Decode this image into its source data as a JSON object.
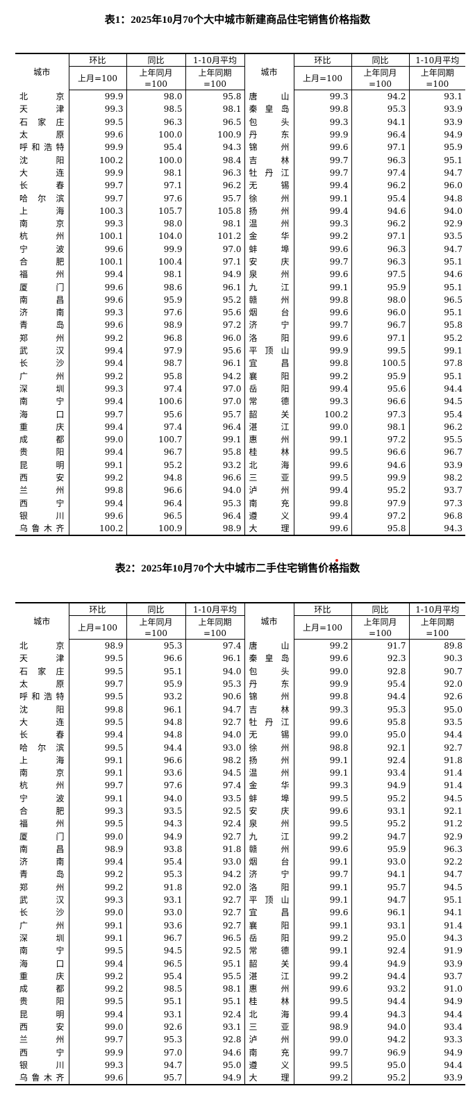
{
  "tables": [
    {
      "title": "表1：2025年10月70个大中城市新建商品住宅销售价格指数",
      "header": {
        "city": "城市",
        "mom": "环比",
        "mom_base": "上月=100",
        "yoy": "同比",
        "yoy_base_1": "上年同月",
        "yoy_base_2": "=100",
        "avg": "1-10月平均",
        "avg_base_1": "上年同期",
        "avg_base_2": "=100"
      },
      "rows": [
        [
          "北京",
          "99.9",
          "98.0",
          "95.8",
          "唐山",
          "99.3",
          "94.2",
          "93.1"
        ],
        [
          "天津",
          "99.3",
          "98.5",
          "98.1",
          "秦皇岛",
          "99.8",
          "95.3",
          "93.9"
        ],
        [
          "石家庄",
          "99.5",
          "96.3",
          "96.5",
          "包头",
          "99.3",
          "94.1",
          "93.9"
        ],
        [
          "太原",
          "99.6",
          "100.0",
          "100.9",
          "丹东",
          "99.9",
          "96.4",
          "94.9"
        ],
        [
          "呼和浩特",
          "99.9",
          "95.4",
          "94.3",
          "锦州",
          "99.6",
          "97.1",
          "95.9"
        ],
        [
          "沈阳",
          "100.2",
          "100.0",
          "98.4",
          "吉林",
          "99.7",
          "96.3",
          "95.1"
        ],
        [
          "大连",
          "99.9",
          "98.1",
          "96.3",
          "牡丹江",
          "99.7",
          "97.4",
          "94.7"
        ],
        [
          "长春",
          "99.7",
          "97.1",
          "96.2",
          "无锡",
          "99.4",
          "96.2",
          "96.0"
        ],
        [
          "哈尔滨",
          "99.7",
          "97.6",
          "95.7",
          "徐州",
          "99.1",
          "95.4",
          "94.8"
        ],
        [
          "上海",
          "100.3",
          "105.7",
          "105.8",
          "扬州",
          "99.4",
          "94.6",
          "94.0"
        ],
        [
          "南京",
          "99.3",
          "98.0",
          "98.1",
          "温州",
          "99.3",
          "96.2",
          "92.9"
        ],
        [
          "杭州",
          "100.1",
          "104.0",
          "101.2",
          "金华",
          "99.2",
          "97.1",
          "93.5"
        ],
        [
          "宁波",
          "99.6",
          "99.9",
          "97.0",
          "蚌埠",
          "99.6",
          "96.3",
          "94.7"
        ],
        [
          "合肥",
          "100.1",
          "100.4",
          "97.1",
          "安庆",
          "99.7",
          "96.3",
          "95.1"
        ],
        [
          "福州",
          "99.4",
          "98.1",
          "94.9",
          "泉州",
          "99.6",
          "97.5",
          "94.6"
        ],
        [
          "厦门",
          "99.6",
          "98.6",
          "96.1",
          "九江",
          "99.1",
          "95.9",
          "95.1"
        ],
        [
          "南昌",
          "99.6",
          "95.9",
          "95.2",
          "赣州",
          "99.8",
          "98.0",
          "96.5"
        ],
        [
          "济南",
          "99.3",
          "97.6",
          "95.6",
          "烟台",
          "99.6",
          "96.0",
          "95.1"
        ],
        [
          "青岛",
          "99.6",
          "98.9",
          "97.2",
          "济宁",
          "99.7",
          "96.7",
          "95.8"
        ],
        [
          "郑州",
          "99.2",
          "96.8",
          "96.0",
          "洛阳",
          "99.6",
          "97.1",
          "95.2"
        ],
        [
          "武汉",
          "99.4",
          "97.9",
          "95.6",
          "平顶山",
          "99.9",
          "99.5",
          "99.1"
        ],
        [
          "长沙",
          "99.4",
          "98.7",
          "96.1",
          "宜昌",
          "99.8",
          "100.5",
          "97.8"
        ],
        [
          "广州",
          "99.2",
          "95.8",
          "94.2",
          "襄阳",
          "99.2",
          "95.9",
          "95.1"
        ],
        [
          "深圳",
          "99.3",
          "97.4",
          "97.0",
          "岳阳",
          "99.4",
          "95.6",
          "94.4"
        ],
        [
          "南宁",
          "99.4",
          "100.6",
          "97.0",
          "常德",
          "99.3",
          "96.6",
          "94.5"
        ],
        [
          "海口",
          "99.7",
          "95.6",
          "95.7",
          "韶关",
          "100.2",
          "97.3",
          "95.4"
        ],
        [
          "重庆",
          "99.4",
          "97.4",
          "96.4",
          "湛江",
          "99.0",
          "98.1",
          "96.2"
        ],
        [
          "成都",
          "99.0",
          "100.7",
          "99.1",
          "惠州",
          "99.1",
          "97.2",
          "95.5"
        ],
        [
          "贵阳",
          "99.4",
          "96.7",
          "95.8",
          "桂林",
          "99.5",
          "96.6",
          "96.7"
        ],
        [
          "昆明",
          "99.1",
          "95.2",
          "93.2",
          "北海",
          "99.6",
          "94.6",
          "93.9"
        ],
        [
          "西安",
          "99.2",
          "94.8",
          "96.6",
          "三亚",
          "99.5",
          "99.9",
          "98.2"
        ],
        [
          "兰州",
          "99.8",
          "96.6",
          "94.0",
          "泸州",
          "99.4",
          "95.2",
          "93.7"
        ],
        [
          "西宁",
          "99.4",
          "96.4",
          "95.3",
          "南充",
          "99.8",
          "97.9",
          "97.3"
        ],
        [
          "银川",
          "99.6",
          "96.5",
          "96.4",
          "遵义",
          "99.4",
          "97.2",
          "96.8"
        ],
        [
          "乌鲁木齐",
          "100.2",
          "100.9",
          "98.9",
          "大理",
          "99.6",
          "95.8",
          "94.3"
        ]
      ]
    },
    {
      "title": "表2：2025年10月70个大中城市二手住宅销售价格指数",
      "header": {
        "city": "城市",
        "mom": "环比",
        "mom_base": "上月=100",
        "yoy": "同比",
        "yoy_base_1": "上年同月",
        "yoy_base_2": "=100",
        "avg": "1-10月平均",
        "avg_base_1": "上年同期",
        "avg_base_2": "=100"
      },
      "rows": [
        [
          "北京",
          "98.9",
          "95.3",
          "97.4",
          "唐山",
          "99.2",
          "91.7",
          "89.8"
        ],
        [
          "天津",
          "99.5",
          "96.6",
          "96.1",
          "秦皇岛",
          "99.6",
          "92.3",
          "90.3"
        ],
        [
          "石家庄",
          "99.5",
          "95.1",
          "94.0",
          "包头",
          "99.0",
          "92.8",
          "90.7"
        ],
        [
          "太原",
          "99.7",
          "95.9",
          "95.3",
          "丹东",
          "99.9",
          "95.4",
          "92.0"
        ],
        [
          "呼和浩特",
          "99.5",
          "93.2",
          "90.6",
          "锦州",
          "99.8",
          "94.4",
          "92.6"
        ],
        [
          "沈阳",
          "99.8",
          "96.1",
          "94.7",
          "吉林",
          "99.3",
          "95.3",
          "95.0"
        ],
        [
          "大连",
          "99.5",
          "94.8",
          "92.7",
          "牡丹江",
          "99.6",
          "95.8",
          "93.5"
        ],
        [
          "长春",
          "99.4",
          "94.8",
          "94.0",
          "无锡",
          "99.0",
          "95.0",
          "94.4"
        ],
        [
          "哈尔滨",
          "99.5",
          "94.4",
          "93.0",
          "徐州",
          "98.8",
          "92.1",
          "92.7"
        ],
        [
          "上海",
          "99.1",
          "96.6",
          "98.2",
          "扬州",
          "99.1",
          "92.4",
          "91.8"
        ],
        [
          "南京",
          "99.1",
          "93.6",
          "94.5",
          "温州",
          "99.1",
          "93.4",
          "91.4"
        ],
        [
          "杭州",
          "99.7",
          "97.6",
          "97.4",
          "金华",
          "99.3",
          "94.9",
          "91.4"
        ],
        [
          "宁波",
          "99.1",
          "94.0",
          "93.5",
          "蚌埠",
          "99.5",
          "95.2",
          "94.5"
        ],
        [
          "合肥",
          "99.3",
          "93.5",
          "92.5",
          "安庆",
          "99.6",
          "93.1",
          "92.1"
        ],
        [
          "福州",
          "99.5",
          "94.3",
          "92.4",
          "泉州",
          "99.5",
          "95.2",
          "91.2"
        ],
        [
          "厦门",
          "99.0",
          "94.9",
          "92.7",
          "九江",
          "99.2",
          "94.7",
          "92.9"
        ],
        [
          "南昌",
          "98.9",
          "93.8",
          "91.8",
          "赣州",
          "99.6",
          "95.9",
          "96.3"
        ],
        [
          "济南",
          "99.4",
          "95.4",
          "93.0",
          "烟台",
          "99.1",
          "93.0",
          "92.2"
        ],
        [
          "青岛",
          "99.2",
          "95.3",
          "94.2",
          "济宁",
          "99.7",
          "94.1",
          "94.7"
        ],
        [
          "郑州",
          "99.2",
          "91.8",
          "92.0",
          "洛阳",
          "99.1",
          "95.7",
          "94.5"
        ],
        [
          "武汉",
          "99.3",
          "93.1",
          "92.7",
          "平顶山",
          "99.1",
          "94.7",
          "95.1"
        ],
        [
          "长沙",
          "99.0",
          "93.0",
          "92.7",
          "宜昌",
          "99.6",
          "96.1",
          "94.1"
        ],
        [
          "广州",
          "99.1",
          "93.6",
          "92.7",
          "襄阳",
          "99.1",
          "93.1",
          "91.4"
        ],
        [
          "深圳",
          "99.1",
          "96.7",
          "96.5",
          "岳阳",
          "99.2",
          "95.0",
          "94.3"
        ],
        [
          "南宁",
          "99.5",
          "94.5",
          "92.5",
          "常德",
          "99.1",
          "92.4",
          "91.9"
        ],
        [
          "海口",
          "99.4",
          "96.5",
          "95.1",
          "韶关",
          "99.4",
          "94.9",
          "93.9"
        ],
        [
          "重庆",
          "99.2",
          "95.4",
          "95.5",
          "湛江",
          "99.2",
          "94.4",
          "93.7"
        ],
        [
          "成都",
          "99.2",
          "98.5",
          "98.1",
          "惠州",
          "99.6",
          "93.2",
          "91.0"
        ],
        [
          "贵阳",
          "99.5",
          "95.1",
          "95.1",
          "桂林",
          "99.5",
          "94.4",
          "94.9"
        ],
        [
          "昆明",
          "99.4",
          "93.1",
          "92.4",
          "北海",
          "99.4",
          "94.3",
          "94.4"
        ],
        [
          "西安",
          "99.0",
          "92.6",
          "93.1",
          "三亚",
          "98.9",
          "94.0",
          "93.4"
        ],
        [
          "兰州",
          "99.7",
          "95.3",
          "92.8",
          "泸州",
          "99.0",
          "94.2",
          "93.3"
        ],
        [
          "西宁",
          "99.9",
          "97.0",
          "94.6",
          "南充",
          "99.7",
          "96.9",
          "94.9"
        ],
        [
          "银川",
          "99.3",
          "94.7",
          "95.0",
          "遵义",
          "99.5",
          "95.0",
          "94.4"
        ],
        [
          "乌鲁木齐",
          "99.6",
          "95.7",
          "94.9",
          "大理",
          "99.2",
          "95.2",
          "93.9"
        ]
      ]
    }
  ],
  "colors": {
    "text": "#000000",
    "marker_dot": "#e0201a"
  }
}
